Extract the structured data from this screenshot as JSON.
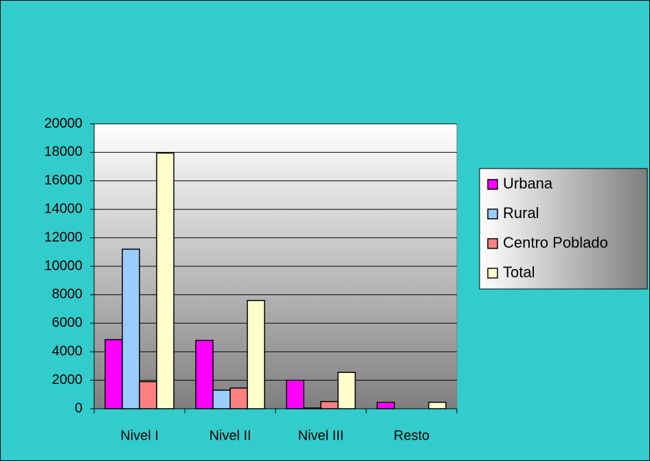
{
  "chart_data": {
    "type": "bar",
    "categories": [
      "Nivel I",
      "Nivel II",
      "Nivel III",
      "Resto"
    ],
    "series": [
      {
        "name": "Urbana",
        "color": "#ff00ff",
        "values": [
          4850,
          4800,
          2000,
          450
        ]
      },
      {
        "name": "Rural",
        "color": "#99ccff",
        "values": [
          11200,
          1300,
          50,
          0
        ]
      },
      {
        "name": "Centro Poblado",
        "color": "#ff8080",
        "values": [
          1900,
          1450,
          500,
          0
        ]
      },
      {
        "name": "Total",
        "color": "#ffffcc",
        "values": [
          17950,
          7600,
          2550,
          450
        ]
      }
    ],
    "ylim": [
      0,
      20000
    ],
    "yticks": [
      0,
      2000,
      4000,
      6000,
      8000,
      10000,
      12000,
      14000,
      16000,
      18000,
      20000
    ],
    "grid": true,
    "legend": "right"
  }
}
